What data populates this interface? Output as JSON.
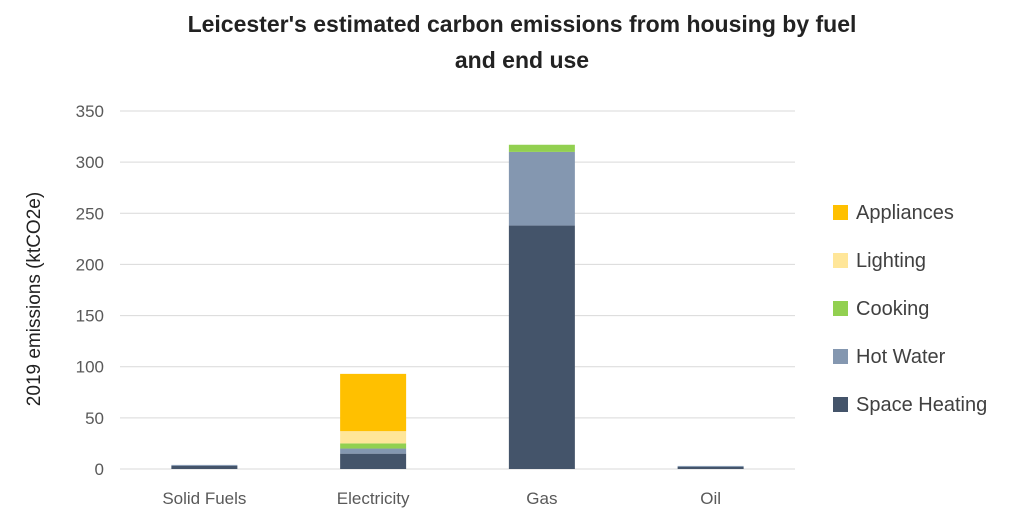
{
  "chart_data": {
    "type": "bar",
    "stacked": true,
    "title_line1": "Leicester's estimated carbon emissions from housing by fuel",
    "title_line2": "and end use",
    "xlabel": "",
    "ylabel": "2019 emissions (ktCO2e)",
    "ylim": [
      0,
      350
    ],
    "yticks": [
      0,
      50,
      100,
      150,
      200,
      250,
      300,
      350
    ],
    "grid": true,
    "legend_position": "right",
    "categories": [
      "Solid Fuels",
      "Electricity",
      "Gas",
      "Oil"
    ],
    "series": [
      {
        "name": "Space Heating",
        "color": "#44546a",
        "values": [
          3,
          15,
          238,
          2
        ]
      },
      {
        "name": "Hot Water",
        "color": "#8497b0",
        "values": [
          1,
          5,
          72,
          1
        ]
      },
      {
        "name": "Cooking",
        "color": "#92d050",
        "values": [
          0,
          5,
          7,
          0
        ]
      },
      {
        "name": "Lighting",
        "color": "#ffe699",
        "values": [
          0,
          12,
          0,
          0
        ]
      },
      {
        "name": "Appliances",
        "color": "#ffc000",
        "values": [
          0,
          56,
          0,
          0
        ]
      }
    ],
    "legend_order": [
      "Appliances",
      "Lighting",
      "Cooking",
      "Hot Water",
      "Space Heating"
    ]
  }
}
